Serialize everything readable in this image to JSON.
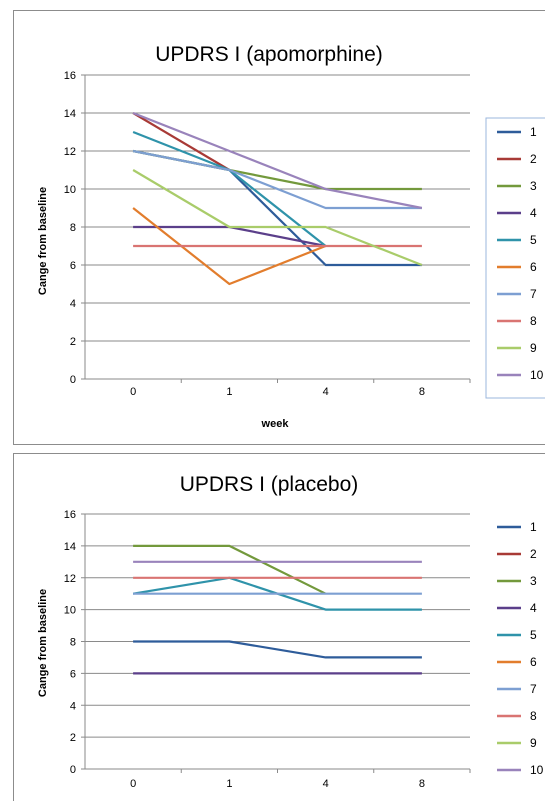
{
  "chart_data": [
    {
      "type": "line",
      "title": "UPDRS I (apomorphine)",
      "xlabel": "week",
      "ylabel": "Cange from baseline",
      "categories": [
        "0",
        "1",
        "4",
        "8"
      ],
      "ylim": [
        0,
        16
      ],
      "yticks": [
        "0",
        "2",
        "4",
        "6",
        "8",
        "10",
        "12",
        "14",
        "16"
      ],
      "grid": true,
      "legend": "right",
      "series": [
        {
          "name": "1",
          "color": "#2e5c9a",
          "values": [
            12,
            11,
            6,
            6
          ]
        },
        {
          "name": "2",
          "color": "#a83a36",
          "values": [
            14,
            11,
            null,
            null
          ]
        },
        {
          "name": "3",
          "color": "#73993c",
          "values": [
            12,
            11,
            10,
            10
          ]
        },
        {
          "name": "4",
          "color": "#5b3f8a",
          "values": [
            8,
            8,
            7,
            null
          ]
        },
        {
          "name": "5",
          "color": "#2f93aa",
          "values": [
            13,
            11,
            7,
            null
          ]
        },
        {
          "name": "6",
          "color": "#e27d2d",
          "values": [
            9,
            5,
            7,
            null
          ]
        },
        {
          "name": "7",
          "color": "#7d9fd2",
          "values": [
            12,
            11,
            9,
            9
          ]
        },
        {
          "name": "8",
          "color": "#d97472",
          "values": [
            7,
            7,
            7,
            7
          ]
        },
        {
          "name": "9",
          "color": "#a9cc6a",
          "values": [
            11,
            8,
            8,
            6
          ]
        },
        {
          "name": "10",
          "color": "#9983bb",
          "values": [
            14,
            12,
            10,
            9
          ]
        }
      ]
    },
    {
      "type": "line",
      "title": "UPDRS I (placebo)",
      "xlabel": "",
      "ylabel": "Cange from baseline",
      "categories": [
        "0",
        "1",
        "4",
        "8"
      ],
      "ylim": [
        0,
        16
      ],
      "yticks": [
        "0",
        "2",
        "4",
        "6",
        "8",
        "10",
        "12",
        "14",
        "16"
      ],
      "grid": true,
      "legend": "right",
      "series": [
        {
          "name": "1",
          "color": "#2e5c9a",
          "values": [
            8,
            8,
            7,
            7
          ]
        },
        {
          "name": "2",
          "color": "#a83a36",
          "values": [
            null,
            null,
            null,
            null
          ]
        },
        {
          "name": "3",
          "color": "#73993c",
          "values": [
            14,
            14,
            11,
            null
          ]
        },
        {
          "name": "4",
          "color": "#5b3f8a",
          "values": [
            6,
            6,
            6,
            6
          ]
        },
        {
          "name": "5",
          "color": "#2f93aa",
          "values": [
            11,
            12,
            10,
            10
          ]
        },
        {
          "name": "6",
          "color": "#e27d2d",
          "values": [
            null,
            null,
            null,
            null
          ]
        },
        {
          "name": "7",
          "color": "#7d9fd2",
          "values": [
            11,
            11,
            11,
            11
          ]
        },
        {
          "name": "8",
          "color": "#d97472",
          "values": [
            12,
            12,
            12,
            12
          ]
        },
        {
          "name": "9",
          "color": "#a9cc6a",
          "values": [
            null,
            null,
            null,
            null
          ]
        },
        {
          "name": "10",
          "color": "#9983bb",
          "values": [
            13,
            13,
            13,
            13
          ]
        }
      ]
    }
  ]
}
